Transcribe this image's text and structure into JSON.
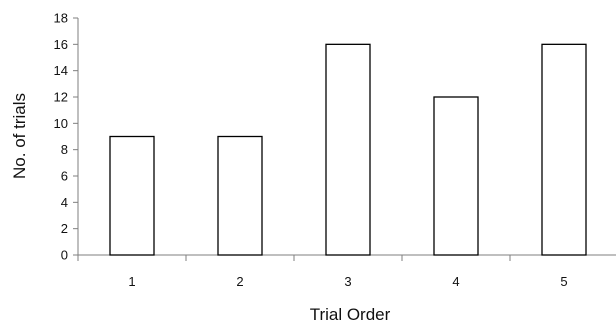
{
  "chart_data": {
    "type": "bar",
    "title": "",
    "xlabel": "Trial Order",
    "ylabel": "No. of trials",
    "categories": [
      "1",
      "2",
      "3",
      "4",
      "5"
    ],
    "values": [
      9,
      9,
      16,
      12,
      16
    ],
    "ylim": [
      0,
      18
    ],
    "yticks": [
      "0",
      "2",
      "4",
      "6",
      "8",
      "10",
      "12",
      "14",
      "16",
      "18"
    ],
    "grid": false,
    "legend": "none",
    "bar_fill": "#ffffff",
    "bar_stroke": "#000000",
    "axis_color": "#7f7f7f"
  }
}
